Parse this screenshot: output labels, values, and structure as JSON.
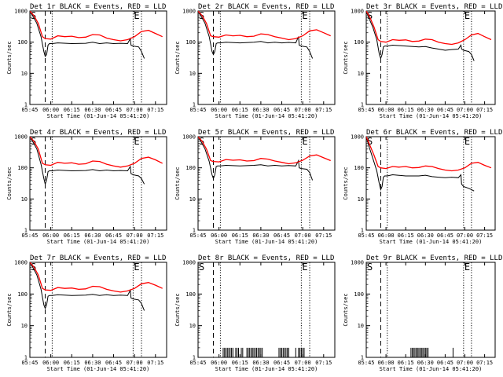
{
  "chart_data": {
    "type": "line",
    "layout": "3x3 grid of panels",
    "y_scale": "log",
    "ylim": [
      1,
      1000
    ],
    "y_ticks": [
      "1",
      "10",
      "100",
      "1000"
    ],
    "x_ticks": [
      "05:45",
      "06:00",
      "06:15",
      "06:30",
      "06:45",
      "07:00",
      "07:15"
    ],
    "xlim_minutes_after_0545": [
      0,
      98
    ],
    "xlabel": "Start Time (01-Jun-14 05:41:20)",
    "ylabel": "Counts/sec",
    "colors": {
      "events": "#000000",
      "lld": "#ff0000",
      "markers": "#000000"
    },
    "markers": [
      {
        "label": "S",
        "minute": 0,
        "style": "solid"
      },
      {
        "label": "",
        "minute": 11,
        "style": "dashed"
      },
      {
        "label": "",
        "minute": 16,
        "style": "dotted"
      },
      {
        "label": "E",
        "minute": 74,
        "style": "dotted"
      },
      {
        "label": "",
        "minute": 80,
        "style": "dotted"
      }
    ],
    "panels": [
      {
        "title": "Det 1r BLACK = Events, RED = LLD",
        "series": [
          {
            "name": "Events",
            "color": "#000000",
            "x": [
              0,
              2,
              5,
              8,
              10,
              11,
              12,
              13,
              14,
              16,
              20,
              30,
              40,
              45,
              50,
              55,
              60,
              65,
              70,
              72,
              72.5,
              74,
              78,
              80,
              82
            ],
            "y": [
              1000,
              700,
              400,
              150,
              50,
              35,
              40,
              80,
              90,
              90,
              95,
              90,
              92,
              100,
              90,
              95,
              90,
              92,
              90,
              130,
              80,
              75,
              70,
              50,
              30
            ]
          },
          {
            "name": "LLD",
            "color": "#ff0000",
            "x": [
              0,
              3,
              6,
              9,
              11,
              15,
              20,
              25,
              30,
              35,
              40,
              45,
              50,
              55,
              60,
              65,
              70,
              75,
              80,
              85,
              90,
              95
            ],
            "y": [
              1000,
              700,
              400,
              150,
              130,
              125,
              160,
              150,
              155,
              140,
              145,
              175,
              170,
              135,
              120,
              110,
              120,
              150,
              220,
              240,
              190,
              150
            ]
          }
        ]
      },
      {
        "title": "Det 2r BLACK = Events, RED = LLD",
        "series": [
          {
            "name": "Events",
            "color": "#000000",
            "x": [
              0,
              2,
              5,
              8,
              10,
              11,
              12,
              13,
              14,
              16,
              20,
              30,
              40,
              45,
              50,
              55,
              60,
              65,
              70,
              72,
              72.5,
              74,
              78,
              80,
              82
            ],
            "y": [
              1000,
              700,
              400,
              150,
              50,
              40,
              50,
              90,
              95,
              95,
              100,
              95,
              100,
              105,
              95,
              100,
              95,
              98,
              95,
              150,
              80,
              75,
              70,
              50,
              30
            ]
          },
          {
            "name": "LLD",
            "color": "#ff0000",
            "x": [
              0,
              3,
              6,
              9,
              11,
              15,
              20,
              25,
              30,
              35,
              40,
              45,
              50,
              55,
              60,
              65,
              70,
              75,
              80,
              85,
              90,
              95
            ],
            "y": [
              1000,
              700,
              400,
              160,
              150,
              145,
              170,
              160,
              165,
              150,
              155,
              185,
              175,
              150,
              135,
              120,
              130,
              160,
              230,
              250,
              200,
              160
            ]
          }
        ]
      },
      {
        "title": "Det 3r BLACK = Events, RED = LLD",
        "series": [
          {
            "name": "Events",
            "color": "#000000",
            "x": [
              0,
              2,
              5,
              8,
              10,
              11,
              12,
              13,
              14,
              16,
              20,
              30,
              40,
              45,
              50,
              55,
              60,
              65,
              70,
              72,
              72.5,
              74,
              78,
              80,
              82
            ],
            "y": [
              1000,
              600,
              300,
              120,
              40,
              30,
              40,
              70,
              75,
              75,
              80,
              75,
              70,
              72,
              65,
              60,
              55,
              58,
              60,
              80,
              60,
              55,
              50,
              40,
              25
            ]
          },
          {
            "name": "LLD",
            "color": "#ff0000",
            "x": [
              0,
              3,
              6,
              9,
              11,
              15,
              20,
              25,
              30,
              35,
              40,
              45,
              50,
              55,
              60,
              65,
              70,
              75,
              80,
              85,
              90,
              95
            ],
            "y": [
              1000,
              600,
              300,
              120,
              105,
              100,
              120,
              115,
              118,
              105,
              108,
              125,
              120,
              100,
              90,
              85,
              95,
              120,
              170,
              190,
              150,
              120
            ]
          }
        ]
      },
      {
        "title": "Det 4r BLACK = Events, RED = LLD",
        "series": [
          {
            "name": "Events",
            "color": "#000000",
            "x": [
              0,
              2,
              5,
              8,
              10,
              11,
              12,
              13,
              14,
              16,
              20,
              30,
              40,
              45,
              50,
              55,
              60,
              65,
              70,
              72,
              72.5,
              74,
              78,
              80,
              82
            ],
            "y": [
              1000,
              700,
              400,
              130,
              45,
              30,
              40,
              75,
              80,
              80,
              85,
              80,
              82,
              88,
              80,
              85,
              80,
              82,
              80,
              110,
              65,
              60,
              55,
              45,
              30
            ]
          },
          {
            "name": "LLD",
            "color": "#ff0000",
            "x": [
              0,
              3,
              6,
              9,
              11,
              15,
              20,
              25,
              30,
              35,
              40,
              45,
              50,
              55,
              60,
              65,
              70,
              75,
              80,
              85,
              90,
              95
            ],
            "y": [
              1000,
              700,
              400,
              140,
              125,
              120,
              150,
              140,
              145,
              130,
              135,
              165,
              160,
              130,
              115,
              105,
              115,
              140,
              200,
              220,
              180,
              140
            ]
          }
        ]
      },
      {
        "title": "Det 5r BLACK = Events, RED = LLD",
        "series": [
          {
            "name": "Events",
            "color": "#000000",
            "x": [
              0,
              2,
              5,
              8,
              10,
              11,
              12,
              13,
              14,
              16,
              20,
              30,
              40,
              45,
              50,
              55,
              60,
              65,
              70,
              72,
              72.5,
              74,
              78,
              80,
              82
            ],
            "y": [
              1000,
              700,
              400,
              160,
              60,
              45,
              60,
              110,
              115,
              115,
              120,
              115,
              120,
              125,
              115,
              120,
              115,
              118,
              115,
              170,
              100,
              95,
              90,
              70,
              40
            ]
          },
          {
            "name": "LLD",
            "color": "#ff0000",
            "x": [
              0,
              3,
              6,
              9,
              11,
              15,
              20,
              25,
              30,
              35,
              40,
              45,
              50,
              55,
              60,
              65,
              70,
              75,
              80,
              85,
              90,
              95
            ],
            "y": [
              1000,
              700,
              400,
              170,
              160,
              155,
              185,
              175,
              180,
              165,
              170,
              200,
              190,
              165,
              150,
              135,
              145,
              175,
              240,
              260,
              210,
              170
            ]
          }
        ]
      },
      {
        "title": "Det 6r BLACK = Events, RED = LLD",
        "series": [
          {
            "name": "Events",
            "color": "#000000",
            "x": [
              0,
              2,
              5,
              8,
              10,
              11,
              12,
              13,
              14,
              16,
              20,
              30,
              40,
              45,
              50,
              55,
              60,
              65,
              70,
              72,
              72.5,
              74,
              78,
              80,
              82
            ],
            "y": [
              1000,
              500,
              200,
              80,
              30,
              20,
              25,
              50,
              55,
              55,
              60,
              55,
              55,
              58,
              52,
              50,
              48,
              50,
              48,
              60,
              30,
              25,
              22,
              20,
              18
            ]
          },
          {
            "name": "LLD",
            "color": "#ff0000",
            "x": [
              0,
              3,
              6,
              9,
              11,
              15,
              20,
              25,
              30,
              35,
              40,
              45,
              50,
              55,
              60,
              65,
              70,
              75,
              80,
              85,
              90,
              95
            ],
            "y": [
              1000,
              500,
              250,
              110,
              100,
              95,
              110,
              105,
              110,
              100,
              102,
              115,
              110,
              95,
              85,
              80,
              85,
              100,
              140,
              150,
              120,
              100
            ]
          }
        ]
      },
      {
        "title": "Det 7r BLACK = Events, RED = LLD",
        "series": [
          {
            "name": "Events",
            "color": "#000000",
            "x": [
              0,
              2,
              5,
              8,
              10,
              11,
              12,
              13,
              14,
              16,
              20,
              30,
              40,
              45,
              50,
              55,
              60,
              65,
              70,
              72,
              72.5,
              74,
              78,
              80,
              82
            ],
            "y": [
              1000,
              700,
              400,
              140,
              45,
              35,
              45,
              85,
              90,
              90,
              95,
              90,
              92,
              98,
              90,
              95,
              90,
              92,
              90,
              130,
              75,
              70,
              65,
              50,
              30
            ]
          },
          {
            "name": "LLD",
            "color": "#ff0000",
            "x": [
              0,
              3,
              6,
              9,
              11,
              15,
              20,
              25,
              30,
              35,
              40,
              45,
              50,
              55,
              60,
              65,
              70,
              75,
              80,
              85,
              90,
              95
            ],
            "y": [
              1000,
              700,
              400,
              150,
              135,
              130,
              160,
              150,
              155,
              140,
              145,
              175,
              170,
              140,
              125,
              115,
              125,
              150,
              210,
              230,
              190,
              150
            ]
          }
        ]
      },
      {
        "title": "Det 8r BLACK = Events, RED = LLD",
        "series": [
          {
            "name": "Events",
            "color": "#000000",
            "type": "spikes",
            "y_spike": 2,
            "x": [
              18,
              19,
              20,
              21,
              22,
              23,
              24,
              25,
              27,
              28,
              29,
              31,
              32,
              35,
              36,
              37,
              38,
              39,
              40,
              41,
              42,
              43,
              44,
              45,
              46,
              58,
              59,
              60,
              61,
              62,
              63,
              64,
              65,
              70,
              72,
              73,
              74,
              75,
              76
            ]
          },
          {
            "name": "LLD",
            "color": "#ff0000",
            "x": [],
            "y": []
          }
        ]
      },
      {
        "title": "Det 9r BLACK = Events, RED = LLD",
        "series": [
          {
            "name": "Events",
            "color": "#000000",
            "type": "spikes",
            "y_spike": 2,
            "x": [
              34,
              35,
              36,
              37,
              38,
              39,
              40,
              41,
              42,
              43,
              44,
              45,
              46,
              47,
              66
            ]
          },
          {
            "name": "LLD",
            "color": "#ff0000",
            "x": [],
            "y": []
          }
        ]
      }
    ]
  }
}
